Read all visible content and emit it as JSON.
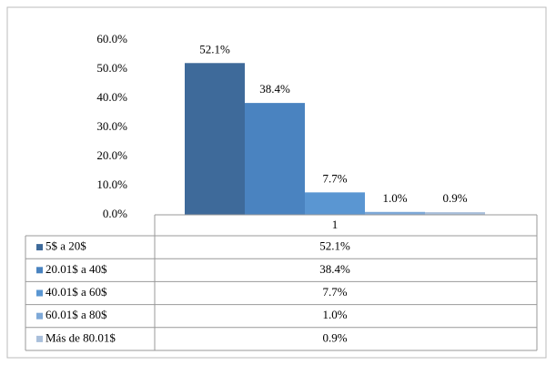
{
  "chart_data": {
    "type": "bar",
    "categories": [
      "1"
    ],
    "series": [
      {
        "name": "5$ a 20$",
        "color": "#3e6a9a",
        "values": [
          52.1
        ],
        "value_labels": [
          "52.1%"
        ]
      },
      {
        "name": "20.01$ a 40$",
        "color": "#4a83c0",
        "values": [
          38.4
        ],
        "value_labels": [
          "38.4%"
        ]
      },
      {
        "name": "40.01$ a 60$",
        "color": "#5a96d2",
        "values": [
          7.7
        ],
        "value_labels": [
          "7.7%"
        ]
      },
      {
        "name": "60.01$ a 80$",
        "color": "#7ea9d8",
        "values": [
          1.0
        ],
        "value_labels": [
          "1.0%"
        ]
      },
      {
        "name": "Más de 80.01$",
        "color": "#a9bfdb",
        "values": [
          0.9
        ],
        "value_labels": [
          "0.9%"
        ]
      }
    ],
    "ylim": [
      0,
      60
    ],
    "yticks": [
      {
        "value": 0,
        "label": "0.0%"
      },
      {
        "value": 10,
        "label": "10.0%"
      },
      {
        "value": 20,
        "label": "20.0%"
      },
      {
        "value": 30,
        "label": "30.0%"
      },
      {
        "value": 40,
        "label": "40.0%"
      },
      {
        "value": 50,
        "label": "50.0%"
      },
      {
        "value": 60,
        "label": "60.0%"
      }
    ],
    "grid": false
  }
}
